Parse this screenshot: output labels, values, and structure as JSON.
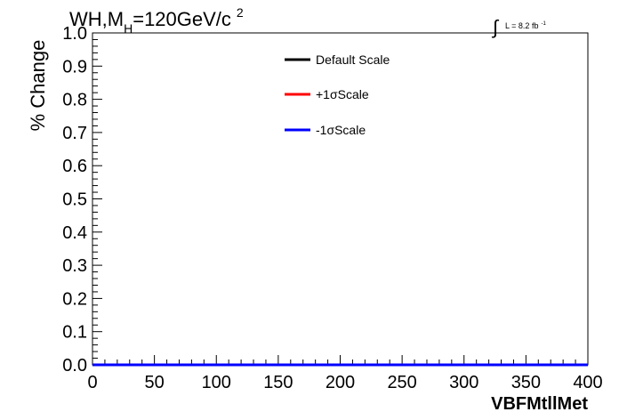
{
  "chart_data": {
    "type": "line",
    "title": {
      "part1": "WH,M",
      "sub": "H",
      "part2": "=120GeV/c",
      "sup": "2"
    },
    "lumi": {
      "integral": "∫",
      "text": "L = 8.2 fb",
      "sup": "-1"
    },
    "xlabel": "VBFMtllMet",
    "ylabel": "% Change",
    "xlim": [
      0,
      400
    ],
    "ylim": [
      0,
      1
    ],
    "x_ticks": [
      0,
      50,
      100,
      150,
      200,
      250,
      300,
      350,
      400
    ],
    "y_ticks": [
      "0.0",
      "0.1",
      "0.2",
      "0.3",
      "0.4",
      "0.5",
      "0.6",
      "0.7",
      "0.8",
      "0.9",
      "1.0"
    ],
    "legend_position": "top-center",
    "grid": false,
    "series": [
      {
        "name": "Default Scale",
        "color": "#000000",
        "x": [
          0,
          400
        ],
        "y": [
          0,
          0
        ]
      },
      {
        "name": "+1σScale",
        "color": "#ff0000",
        "x": [
          0,
          400
        ],
        "y": [
          0,
          0
        ]
      },
      {
        "name": "-1σScale",
        "color": "#0000ff",
        "x": [
          0,
          400
        ],
        "y": [
          0,
          0
        ]
      }
    ]
  }
}
